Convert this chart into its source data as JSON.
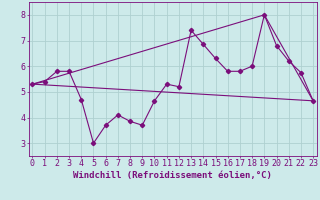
{
  "xlabel": "Windchill (Refroidissement éolien,°C)",
  "x_ticks": [
    0,
    1,
    2,
    3,
    4,
    5,
    6,
    7,
    8,
    9,
    10,
    11,
    12,
    13,
    14,
    15,
    16,
    17,
    18,
    19,
    20,
    21,
    22,
    23
  ],
  "line1_x": [
    0,
    1,
    2,
    3,
    4,
    5,
    6,
    7,
    8,
    9,
    10,
    11,
    12,
    13,
    14,
    15,
    16,
    17,
    18,
    19,
    20,
    21,
    22,
    23
  ],
  "line1_y": [
    5.3,
    5.4,
    5.8,
    5.8,
    4.7,
    3.0,
    3.7,
    4.1,
    3.85,
    3.7,
    4.65,
    5.3,
    5.2,
    7.4,
    6.85,
    6.3,
    5.8,
    5.8,
    6.0,
    8.0,
    6.8,
    6.2,
    5.75,
    4.65
  ],
  "line2_x": [
    0,
    23
  ],
  "line2_y": [
    5.3,
    4.65
  ],
  "line3_x": [
    0,
    19,
    23
  ],
  "line3_y": [
    5.3,
    8.0,
    4.65
  ],
  "color": "#7b0e7b",
  "bg_color": "#cdeaea",
  "grid_color": "#afd0d0",
  "ylim": [
    2.5,
    8.5
  ],
  "xlim": [
    -0.3,
    23.3
  ],
  "xlabel_fontsize": 6.5,
  "tick_fontsize": 6.0,
  "yticks": [
    3,
    4,
    5,
    6,
    7,
    8
  ],
  "linewidth": 0.8,
  "markersize": 2.2
}
